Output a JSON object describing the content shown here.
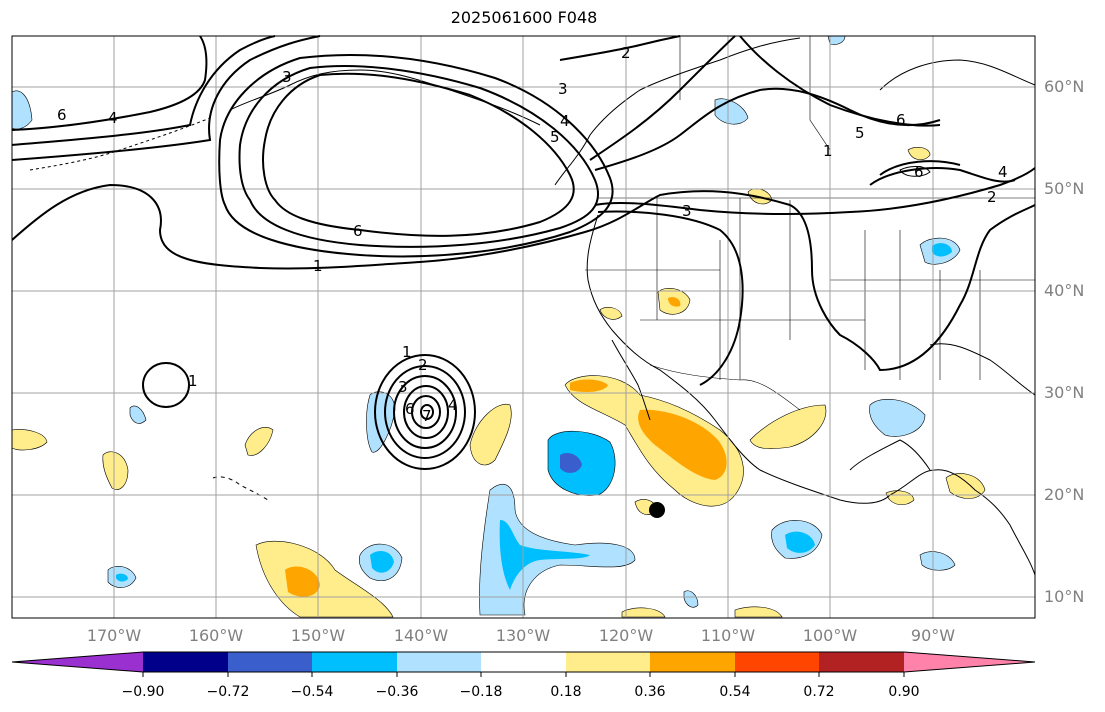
{
  "title": "2025061600 F048",
  "map": {
    "lat_labels": [
      "60°N",
      "50°N",
      "40°N",
      "30°N",
      "20°N",
      "10°N"
    ],
    "lon_labels": [
      "170°W",
      "160°W",
      "150°W",
      "140°W",
      "130°W",
      "120°W",
      "110°W",
      "100°W",
      "90°W"
    ],
    "contour_labels": [
      "6",
      "4",
      "3",
      "6",
      "1",
      "1",
      "2",
      "3",
      "4",
      "5",
      "1",
      "2",
      "3",
      "5",
      "6",
      "4",
      "2",
      "6",
      "1",
      "3",
      "4",
      "6",
      "7"
    ],
    "marker": "black-dot"
  },
  "colorbar": {
    "colors": [
      "#9b30d0",
      "#00008b",
      "#3a5fcd",
      "#00bfff",
      "#b0e2ff",
      "#ffffff",
      "#ffec8b",
      "#ffa500",
      "#ff4500",
      "#b22222",
      "#ff82ab"
    ],
    "tick_labels": [
      "−0.90",
      "−0.72",
      "−0.54",
      "−0.36",
      "−0.18",
      "0.18",
      "0.36",
      "0.54",
      "0.72",
      "0.90"
    ]
  },
  "colors": {
    "ocean": "#ffffff",
    "grid": "#a0a0a0",
    "coast": "#000000",
    "axis_label": "#808080"
  }
}
